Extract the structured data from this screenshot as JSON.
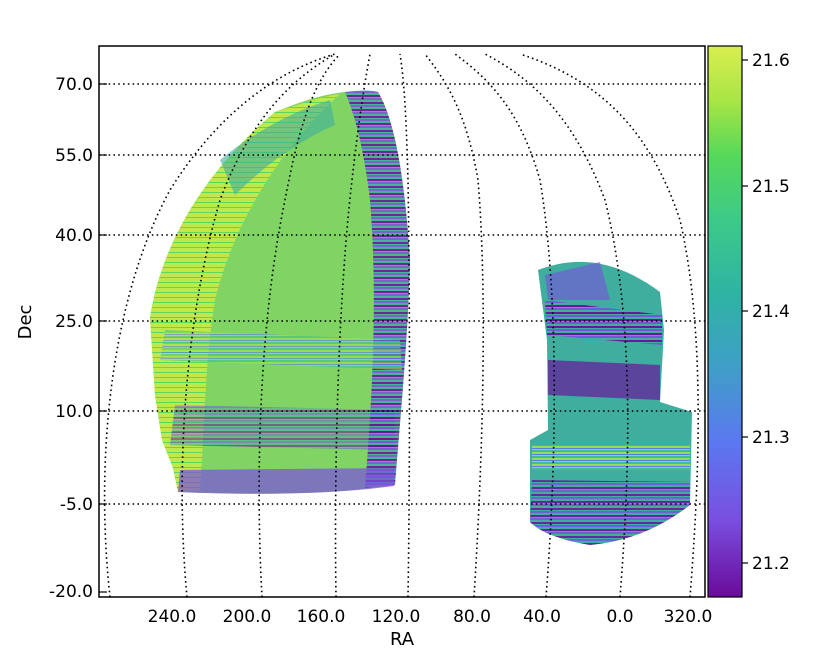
{
  "chart_data": {
    "type": "heatmap",
    "title": "",
    "xlabel": "RA",
    "ylabel": "Dec",
    "x_ticks": [
      "240.0",
      "200.0",
      "160.0",
      "120.0",
      "80.0",
      "40.0",
      "0.0",
      "320.0"
    ],
    "y_ticks": [
      "70.0",
      "55.0",
      "40.0",
      "25.0",
      "10.0",
      "-5.0",
      "-20.0"
    ],
    "colorbar": {
      "ticks": [
        "21.6",
        "21.5",
        "21.4",
        "21.3",
        "21.2"
      ],
      "range": [
        21.17,
        21.62
      ],
      "colors": [
        "#6a0a9a",
        "#7a4fe0",
        "#5b78f0",
        "#3f9fc7",
        "#2fb3a4",
        "#3cc98a",
        "#55d85a",
        "#a8e545",
        "#d9ee4f"
      ]
    },
    "grid": true,
    "regions": [
      {
        "name": "",
        "ra_range": [
          120,
          250
        ],
        "dec_range": [
          -5,
          68
        ],
        "typical_value": 21.45
      },
      {
        "name": "",
        "ra_range": [
          325,
          45
        ],
        "dec_range": [
          -8,
          35
        ],
        "typical_value": 21.35
      }
    ]
  }
}
